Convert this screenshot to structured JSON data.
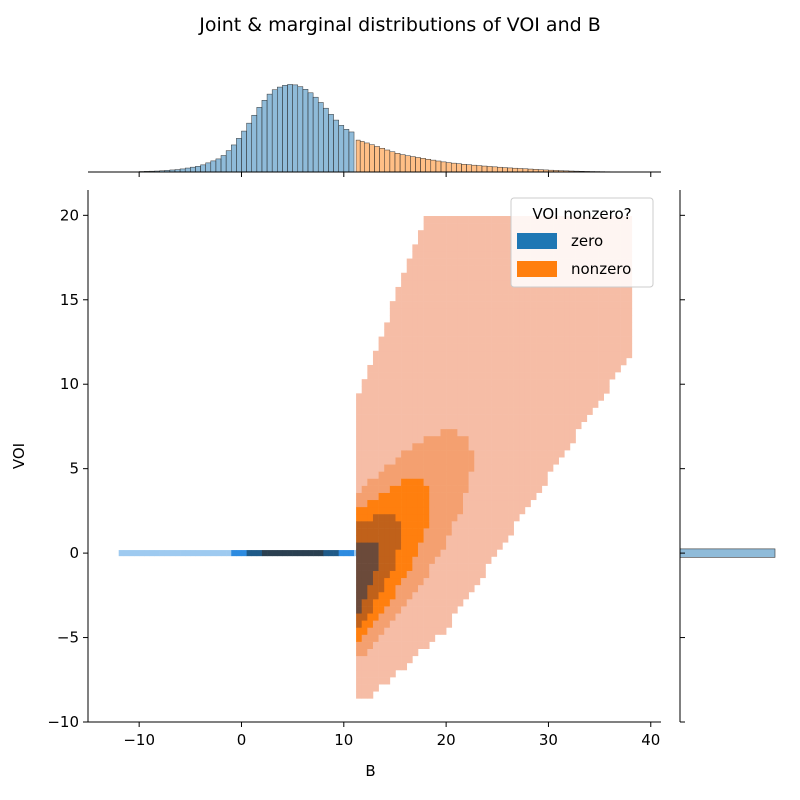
{
  "chart_data": {
    "type": "heatmap",
    "title": "Joint & marginal distributions of VOI and B",
    "xlabel": "B",
    "ylabel": "VOI",
    "xlim": [
      -15,
      41
    ],
    "ylim": [
      -10,
      21.5
    ],
    "xticks": [
      "−10",
      "0",
      "10",
      "20",
      "30",
      "40"
    ],
    "xtick_values": [
      -10,
      0,
      10,
      20,
      30,
      40
    ],
    "yticks": [
      "−10",
      "−5",
      "0",
      "5",
      "10",
      "15",
      "20"
    ],
    "ytick_values": [
      -10,
      -5,
      0,
      5,
      10,
      15,
      20
    ],
    "legend": {
      "title": "VOI nonzero?",
      "placement": "top-right",
      "entries": [
        {
          "label": "zero",
          "color": "#1f77b4"
        },
        {
          "label": "nonzero",
          "color": "#ff7f0e"
        }
      ]
    },
    "series": [
      {
        "name": "zero",
        "color": "#1f77b4",
        "joint_range": {
          "x": [
            -12,
            11.2
          ],
          "y": 0
        },
        "marginal_x_bins": [
          {
            "x": -10,
            "h": 0.005
          },
          {
            "x": -8,
            "h": 0.012
          },
          {
            "x": -6,
            "h": 0.03
          },
          {
            "x": -4,
            "h": 0.07
          },
          {
            "x": -2,
            "h": 0.16
          },
          {
            "x": -1,
            "h": 0.27
          },
          {
            "x": 0,
            "h": 0.42
          },
          {
            "x": 1,
            "h": 0.6
          },
          {
            "x": 2,
            "h": 0.78
          },
          {
            "x": 3,
            "h": 0.92
          },
          {
            "x": 4,
            "h": 0.98
          },
          {
            "x": 5,
            "h": 1.0
          },
          {
            "x": 6,
            "h": 0.96
          },
          {
            "x": 7,
            "h": 0.88
          },
          {
            "x": 8,
            "h": 0.76
          },
          {
            "x": 9,
            "h": 0.62
          },
          {
            "x": 10,
            "h": 0.5
          },
          {
            "x": 11,
            "h": 0.44
          }
        ],
        "marginal_y_value": 0
      },
      {
        "name": "nonzero",
        "color": "#ff7f0e",
        "joint_range": {
          "x": [
            11.2,
            38
          ],
          "y": [
            -8.6,
            20
          ]
        },
        "marginal_x_bins": [
          {
            "x": 11.2,
            "h": 0.37
          },
          {
            "x": 12,
            "h": 0.34
          },
          {
            "x": 13,
            "h": 0.3
          },
          {
            "x": 14,
            "h": 0.26
          },
          {
            "x": 15,
            "h": 0.22
          },
          {
            "x": 16,
            "h": 0.19
          },
          {
            "x": 18,
            "h": 0.15
          },
          {
            "x": 20,
            "h": 0.11
          },
          {
            "x": 22,
            "h": 0.085
          },
          {
            "x": 24,
            "h": 0.065
          },
          {
            "x": 26,
            "h": 0.048
          },
          {
            "x": 28,
            "h": 0.035
          },
          {
            "x": 30,
            "h": 0.022
          },
          {
            "x": 32,
            "h": 0.012
          },
          {
            "x": 34,
            "h": 0.006
          },
          {
            "x": 36,
            "h": 0.003
          }
        ]
      }
    ],
    "grid": false
  }
}
